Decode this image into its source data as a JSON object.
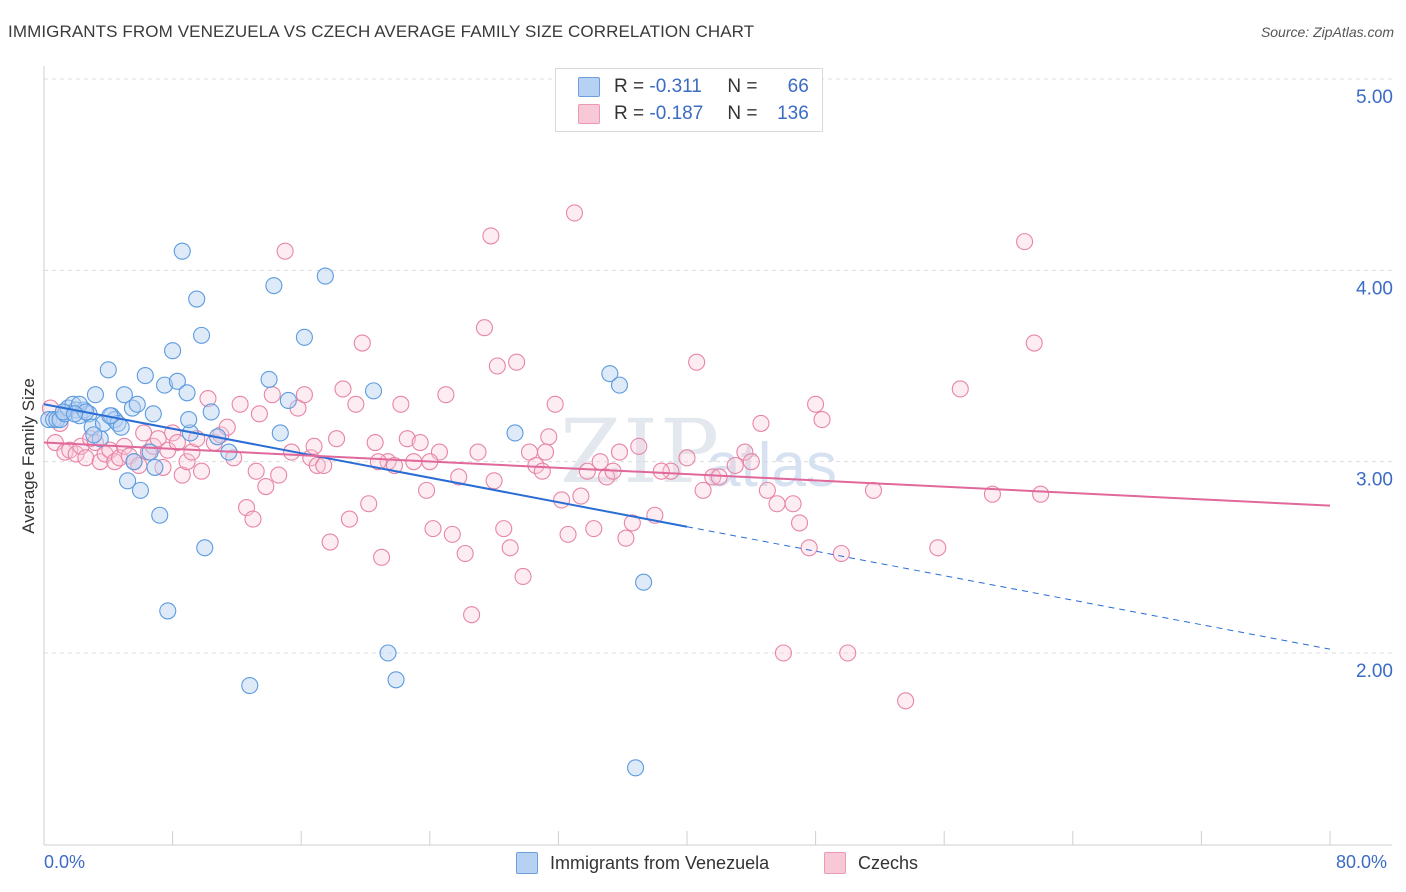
{
  "title": "IMMIGRANTS FROM VENEZUELA VS CZECH AVERAGE FAMILY SIZE CORRELATION CHART",
  "source": "Source: ZipAtlas.com",
  "watermark": "ZIP",
  "watermark2": "atlas",
  "legend_top": {
    "rows": [
      {
        "r_label": "R =",
        "r_value": "-0.311",
        "n_label": "N =",
        "n_value": "66"
      },
      {
        "r_label": "R =",
        "r_value": "-0.187",
        "n_label": "N =",
        "n_value": "136"
      }
    ]
  },
  "colors": {
    "blue": "#5b9be0",
    "blue_fill": "#b7d1f2",
    "pink": "#e785a7",
    "pink_fill": "#f8c8d7",
    "blue_line": "#2a6dd4",
    "pink_line": "#e0689a",
    "tick_text": "#3b6cc5"
  },
  "chart_data": {
    "type": "scatter",
    "title": "IMMIGRANTS FROM VENEZUELA VS CZECH AVERAGE FAMILY SIZE CORRELATION CHART",
    "xlabel": "",
    "ylabel": "Average Family Size",
    "xlim": [
      0,
      80
    ],
    "ylim": [
      1.0,
      5.1
    ],
    "x_tick_labels": [
      "0.0%",
      "80.0%"
    ],
    "y_ticks": [
      2.0,
      3.0,
      4.0,
      5.0
    ],
    "y_tick_labels": [
      "2.00",
      "3.00",
      "4.00",
      "5.00"
    ],
    "grid": true,
    "legend_placement": "bottom-center",
    "series": [
      {
        "name": "Immigrants from Venezuela",
        "color": "#5b9be0",
        "trend": {
          "x0": 0,
          "y0": 3.3,
          "x1": 40,
          "y1": 2.66,
          "dash_x1": 80,
          "dash_y1": 2.02
        },
        "points": [
          [
            0.3,
            3.22
          ],
          [
            0.6,
            3.22
          ],
          [
            0.8,
            3.22
          ],
          [
            1.0,
            3.22
          ],
          [
            1.3,
            3.25
          ],
          [
            1.5,
            3.28
          ],
          [
            1.8,
            3.3
          ],
          [
            2.0,
            3.27
          ],
          [
            2.2,
            3.24
          ],
          [
            2.5,
            3.27
          ],
          [
            2.8,
            3.25
          ],
          [
            3.0,
            3.18
          ],
          [
            3.2,
            3.35
          ],
          [
            3.5,
            3.12
          ],
          [
            3.7,
            3.2
          ],
          [
            4.0,
            3.48
          ],
          [
            4.2,
            3.24
          ],
          [
            4.4,
            3.22
          ],
          [
            4.6,
            3.2
          ],
          [
            4.8,
            3.18
          ],
          [
            5.0,
            3.35
          ],
          [
            5.2,
            2.9
          ],
          [
            5.5,
            3.28
          ],
          [
            5.8,
            3.3
          ],
          [
            6.0,
            2.85
          ],
          [
            6.3,
            3.45
          ],
          [
            6.6,
            3.05
          ],
          [
            6.9,
            2.97
          ],
          [
            7.2,
            2.72
          ],
          [
            7.5,
            3.4
          ],
          [
            7.7,
            2.22
          ],
          [
            8.0,
            3.58
          ],
          [
            8.3,
            3.42
          ],
          [
            8.6,
            4.1
          ],
          [
            8.9,
            3.36
          ],
          [
            9.1,
            3.15
          ],
          [
            9.5,
            3.85
          ],
          [
            9.8,
            3.66
          ],
          [
            10.0,
            2.55
          ],
          [
            10.4,
            3.26
          ],
          [
            10.8,
            3.13
          ],
          [
            11.5,
            3.05
          ],
          [
            12.8,
            1.83
          ],
          [
            14.0,
            3.43
          ],
          [
            14.3,
            3.92
          ],
          [
            14.7,
            3.15
          ],
          [
            15.2,
            3.32
          ],
          [
            16.2,
            3.65
          ],
          [
            17.5,
            3.97
          ],
          [
            20.5,
            3.37
          ],
          [
            21.4,
            2.0
          ],
          [
            21.9,
            1.86
          ],
          [
            29.3,
            3.15
          ],
          [
            35.2,
            3.46
          ],
          [
            35.8,
            3.4
          ],
          [
            36.8,
            1.4
          ],
          [
            37.3,
            2.37
          ],
          [
            2.2,
            3.3
          ],
          [
            1.2,
            3.26
          ],
          [
            3.1,
            3.14
          ],
          [
            2.6,
            3.26
          ],
          [
            4.1,
            3.24
          ],
          [
            5.6,
            3.0
          ],
          [
            1.9,
            3.25
          ],
          [
            6.8,
            3.25
          ],
          [
            9.0,
            3.22
          ]
        ]
      },
      {
        "name": "Czechs",
        "color": "#e785a7",
        "trend": {
          "x0": 0,
          "y0": 3.1,
          "x1": 80,
          "y1": 2.77
        },
        "points": [
          [
            0.4,
            3.28
          ],
          [
            0.7,
            3.1
          ],
          [
            1.0,
            3.2
          ],
          [
            1.3,
            3.05
          ],
          [
            1.6,
            3.06
          ],
          [
            2.0,
            3.04
          ],
          [
            2.3,
            3.08
          ],
          [
            2.6,
            3.02
          ],
          [
            2.9,
            3.12
          ],
          [
            3.2,
            3.1
          ],
          [
            3.5,
            3.0
          ],
          [
            3.8,
            3.04
          ],
          [
            4.1,
            3.06
          ],
          [
            4.4,
            3.0
          ],
          [
            4.7,
            3.02
          ],
          [
            5.0,
            3.08
          ],
          [
            5.3,
            3.03
          ],
          [
            5.6,
            3.0
          ],
          [
            5.9,
            2.98
          ],
          [
            6.2,
            3.15
          ],
          [
            6.5,
            3.05
          ],
          [
            6.8,
            3.08
          ],
          [
            7.1,
            3.12
          ],
          [
            7.4,
            2.97
          ],
          [
            7.7,
            3.06
          ],
          [
            8.0,
            3.15
          ],
          [
            8.3,
            3.1
          ],
          [
            8.6,
            2.93
          ],
          [
            8.9,
            3.0
          ],
          [
            9.2,
            3.05
          ],
          [
            9.5,
            3.12
          ],
          [
            9.8,
            2.95
          ],
          [
            10.2,
            3.33
          ],
          [
            10.6,
            3.1
          ],
          [
            11.0,
            3.14
          ],
          [
            11.4,
            3.18
          ],
          [
            11.8,
            3.02
          ],
          [
            12.2,
            3.3
          ],
          [
            12.6,
            2.76
          ],
          [
            13.0,
            2.7
          ],
          [
            13.4,
            3.25
          ],
          [
            13.8,
            2.87
          ],
          [
            14.2,
            3.35
          ],
          [
            14.6,
            2.93
          ],
          [
            15.0,
            4.1
          ],
          [
            15.4,
            3.05
          ],
          [
            15.8,
            3.28
          ],
          [
            16.2,
            3.35
          ],
          [
            16.6,
            3.02
          ],
          [
            17.0,
            2.98
          ],
          [
            17.4,
            2.98
          ],
          [
            17.8,
            2.58
          ],
          [
            18.2,
            3.12
          ],
          [
            18.6,
            3.38
          ],
          [
            19.0,
            2.7
          ],
          [
            19.4,
            3.3
          ],
          [
            19.8,
            3.62
          ],
          [
            20.2,
            2.78
          ],
          [
            20.6,
            3.1
          ],
          [
            21.0,
            2.5
          ],
          [
            21.4,
            3.0
          ],
          [
            21.8,
            2.98
          ],
          [
            22.2,
            3.3
          ],
          [
            22.6,
            3.12
          ],
          [
            23.0,
            3.0
          ],
          [
            23.4,
            3.1
          ],
          [
            23.8,
            2.85
          ],
          [
            24.2,
            2.65
          ],
          [
            24.6,
            3.05
          ],
          [
            25.0,
            3.35
          ],
          [
            25.4,
            2.62
          ],
          [
            25.8,
            2.92
          ],
          [
            26.2,
            2.52
          ],
          [
            26.6,
            2.2
          ],
          [
            27.0,
            3.05
          ],
          [
            27.4,
            3.7
          ],
          [
            27.8,
            4.18
          ],
          [
            28.2,
            3.5
          ],
          [
            28.6,
            2.65
          ],
          [
            29.0,
            2.55
          ],
          [
            29.4,
            3.52
          ],
          [
            29.8,
            2.4
          ],
          [
            30.2,
            3.05
          ],
          [
            30.6,
            2.98
          ],
          [
            31.0,
            2.95
          ],
          [
            31.4,
            3.13
          ],
          [
            31.8,
            3.3
          ],
          [
            32.2,
            2.8
          ],
          [
            32.6,
            2.62
          ],
          [
            33.0,
            4.3
          ],
          [
            33.4,
            2.82
          ],
          [
            33.8,
            2.95
          ],
          [
            34.2,
            2.65
          ],
          [
            34.6,
            3.0
          ],
          [
            35.0,
            2.92
          ],
          [
            35.4,
            2.95
          ],
          [
            35.8,
            3.05
          ],
          [
            36.2,
            2.6
          ],
          [
            36.6,
            2.68
          ],
          [
            37.0,
            3.08
          ],
          [
            38.0,
            2.72
          ],
          [
            39.0,
            2.95
          ],
          [
            40.0,
            3.02
          ],
          [
            40.6,
            3.52
          ],
          [
            41.0,
            2.85
          ],
          [
            41.6,
            2.92
          ],
          [
            42.0,
            2.92
          ],
          [
            43.0,
            2.98
          ],
          [
            43.6,
            3.05
          ],
          [
            44.6,
            3.2
          ],
          [
            45.0,
            2.85
          ],
          [
            45.6,
            2.78
          ],
          [
            46.0,
            2.0
          ],
          [
            46.6,
            2.78
          ],
          [
            47.0,
            2.68
          ],
          [
            47.6,
            2.55
          ],
          [
            48.0,
            3.3
          ],
          [
            48.4,
            3.22
          ],
          [
            49.6,
            2.52
          ],
          [
            50.0,
            2.0
          ],
          [
            51.6,
            2.85
          ],
          [
            53.6,
            1.75
          ],
          [
            55.6,
            2.55
          ],
          [
            57.0,
            3.38
          ],
          [
            59.0,
            2.83
          ],
          [
            61.0,
            4.15
          ],
          [
            61.6,
            3.62
          ],
          [
            62.0,
            2.83
          ],
          [
            13.2,
            2.95
          ],
          [
            16.8,
            3.08
          ],
          [
            24.0,
            3.0
          ],
          [
            31.2,
            3.05
          ],
          [
            38.4,
            2.95
          ],
          [
            44.0,
            3.0
          ],
          [
            20.8,
            3.0
          ],
          [
            28.0,
            2.9
          ]
        ]
      }
    ]
  },
  "bottom_legend": [
    "Immigrants from Venezuela",
    "Czechs"
  ]
}
